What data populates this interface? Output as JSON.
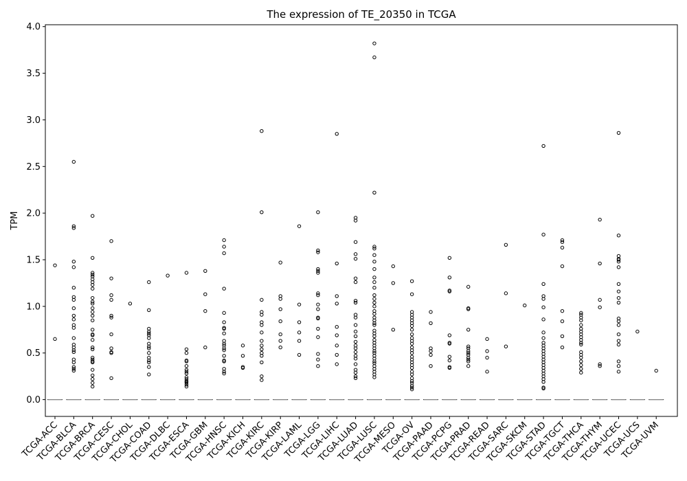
{
  "chart_data": {
    "type": "boxplot",
    "title": "The expression of TE_20350 in TCGA",
    "xlabel": "",
    "ylabel": "TPM",
    "ylim": [
      -0.18,
      4.02
    ],
    "yticks": [
      0.0,
      0.5,
      1.0,
      1.5,
      2.0,
      2.5,
      3.0,
      3.5,
      4.0
    ],
    "ytick_labels": [
      "0.0",
      "0.5",
      "1.0",
      "1.5",
      "2.0",
      "2.5",
      "3.0",
      "3.5",
      "4.0"
    ],
    "grid": false,
    "box_median": 0.0,
    "categories": [
      "TCGA-ACC",
      "TCGA-BLCA",
      "TCGA-BRCA",
      "TCGA-CESC",
      "TCGA-CHOL",
      "TCGA-COAD",
      "TCGA-DLBC",
      "TCGA-ESCA",
      "TCGA-GBM",
      "TCGA-HNSC",
      "TCGA-KICH",
      "TCGA-KIRC",
      "TCGA-KIRP",
      "TCGA-LAML",
      "TCGA-LGG",
      "TCGA-LIHC",
      "TCGA-LUAD",
      "TCGA-LUSC",
      "TCGA-MESO",
      "TCGA-OV",
      "TCGA-PAAD",
      "TCGA-PCPG",
      "TCGA-PRAD",
      "TCGA-READ",
      "TCGA-SARC",
      "TCGA-SKCM",
      "TCGA-STAD",
      "TCGA-TGCT",
      "TCGA-THCA",
      "TCGA-THYM",
      "TCGA-UCEC",
      "TCGA-UCS",
      "TCGA-UVM"
    ],
    "outliers": [
      [
        1.44,
        0.65
      ],
      [
        2.55,
        1.86,
        1.84,
        1.48,
        1.42,
        1.2,
        1.1,
        1.07,
        0.98,
        0.9,
        0.86,
        0.8,
        0.77,
        0.66,
        0.59,
        0.56,
        0.53,
        0.51,
        0.43,
        0.4,
        0.35,
        0.33,
        0.31
      ],
      [
        1.97,
        1.52,
        1.36,
        1.34,
        1.32,
        1.29,
        1.26,
        1.23,
        1.19,
        1.09,
        1.05,
        1.03,
        0.98,
        0.94,
        0.9,
        0.85,
        0.75,
        0.7,
        0.69,
        0.64,
        0.56,
        0.54,
        0.45,
        0.43,
        0.41,
        0.4,
        0.32,
        0.26,
        0.22,
        0.18,
        0.14
      ],
      [
        1.7,
        1.3,
        1.12,
        1.07,
        0.9,
        0.88,
        0.7,
        0.55,
        0.51,
        0.5,
        0.23
      ],
      [
        1.03
      ],
      [
        1.26,
        0.96,
        0.76,
        0.73,
        0.71,
        0.69,
        0.66,
        0.6,
        0.57,
        0.55,
        0.5,
        0.45,
        0.42,
        0.4,
        0.35,
        0.27
      ],
      [
        1.33
      ],
      [
        1.36,
        0.54,
        0.5,
        0.42,
        0.41,
        0.36,
        0.32,
        0.3,
        0.28,
        0.24,
        0.22,
        0.2,
        0.19,
        0.18,
        0.16,
        0.14
      ],
      [
        1.38,
        1.13,
        0.95,
        0.56
      ],
      [
        1.71,
        1.64,
        1.57,
        1.19,
        0.93,
        0.83,
        0.77,
        0.76,
        0.71,
        0.63,
        0.6,
        0.58,
        0.55,
        0.53,
        0.47,
        0.42,
        0.41,
        0.33,
        0.3,
        0.28
      ],
      [
        0.58,
        0.47,
        0.35,
        0.34
      ],
      [
        2.88,
        2.01,
        1.07,
        0.94,
        0.91,
        0.83,
        0.8,
        0.72,
        0.63,
        0.58,
        0.54,
        0.5,
        0.47,
        0.4,
        0.25,
        0.21
      ],
      [
        1.47,
        1.11,
        1.08,
        0.97,
        0.84,
        0.7,
        0.63,
        0.56
      ],
      [
        1.86,
        1.02,
        0.83,
        0.72,
        0.63,
        0.48
      ],
      [
        2.01,
        1.6,
        1.58,
        1.4,
        1.38,
        1.36,
        1.14,
        1.12,
        1.02,
        0.97,
        0.88,
        0.87,
        0.76,
        0.67,
        0.49,
        0.43,
        0.36
      ],
      [
        2.85,
        1.46,
        1.11,
        1.03,
        0.78,
        0.69,
        0.58,
        0.48,
        0.38
      ],
      [
        1.95,
        1.92,
        1.69,
        1.56,
        1.51,
        1.3,
        1.26,
        1.06,
        1.04,
        0.91,
        0.88,
        0.8,
        0.73,
        0.68,
        0.62,
        0.58,
        0.55,
        0.51,
        0.47,
        0.44,
        0.38,
        0.32,
        0.29,
        0.25,
        0.23
      ],
      [
        3.82,
        3.67,
        2.22,
        1.64,
        1.62,
        1.55,
        1.48,
        1.4,
        1.31,
        1.26,
        1.2,
        1.12,
        1.08,
        1.04,
        1.0,
        0.95,
        0.92,
        0.88,
        0.85,
        0.82,
        0.8,
        0.74,
        0.71,
        0.68,
        0.64,
        0.61,
        0.58,
        0.55,
        0.52,
        0.5,
        0.47,
        0.44,
        0.41,
        0.39,
        0.36,
        0.33,
        0.3,
        0.27,
        0.24
      ],
      [
        1.43,
        1.25,
        0.75
      ],
      [
        1.27,
        1.13,
        0.94,
        0.91,
        0.88,
        0.85,
        0.82,
        0.79,
        0.75,
        0.7,
        0.66,
        0.63,
        0.6,
        0.56,
        0.53,
        0.5,
        0.46,
        0.43,
        0.4,
        0.37,
        0.34,
        0.3,
        0.27,
        0.23,
        0.2,
        0.18,
        0.15,
        0.13,
        0.11
      ],
      [
        0.94,
        0.82,
        0.55,
        0.52,
        0.48,
        0.36
      ],
      [
        1.52,
        1.31,
        1.17,
        1.16,
        0.69,
        0.61,
        0.6,
        0.46,
        0.42,
        0.35,
        0.34
      ],
      [
        1.21,
        0.98,
        0.97,
        0.75,
        0.57,
        0.55,
        0.52,
        0.5,
        0.48,
        0.45,
        0.43,
        0.41,
        0.36
      ],
      [
        0.65,
        0.52,
        0.45,
        0.3
      ],
      [
        1.66,
        1.14,
        0.57
      ],
      [
        1.01
      ],
      [
        2.72,
        1.77,
        1.24,
        1.11,
        1.08,
        0.99,
        0.86,
        0.72,
        0.66,
        0.61,
        0.58,
        0.55,
        0.52,
        0.49,
        0.46,
        0.43,
        0.4,
        0.37,
        0.34,
        0.31,
        0.28,
        0.25,
        0.22,
        0.19,
        0.13,
        0.12
      ],
      [
        1.71,
        1.69,
        1.63,
        1.43,
        0.95,
        0.84,
        0.68,
        0.56
      ],
      [
        0.93,
        0.91,
        0.88,
        0.85,
        0.8,
        0.76,
        0.73,
        0.7,
        0.67,
        0.64,
        0.61,
        0.59,
        0.51,
        0.48,
        0.45,
        0.41,
        0.37,
        0.33,
        0.29
      ],
      [
        1.93,
        1.46,
        1.07,
        0.99,
        0.38,
        0.36
      ],
      [
        2.86,
        1.76,
        1.54,
        1.51,
        1.5,
        1.48,
        1.42,
        1.24,
        1.16,
        1.09,
        1.04,
        0.87,
        0.84,
        0.8,
        0.7,
        0.63,
        0.59,
        0.41,
        0.36,
        0.3
      ],
      [
        0.73
      ],
      [
        0.31
      ]
    ]
  }
}
